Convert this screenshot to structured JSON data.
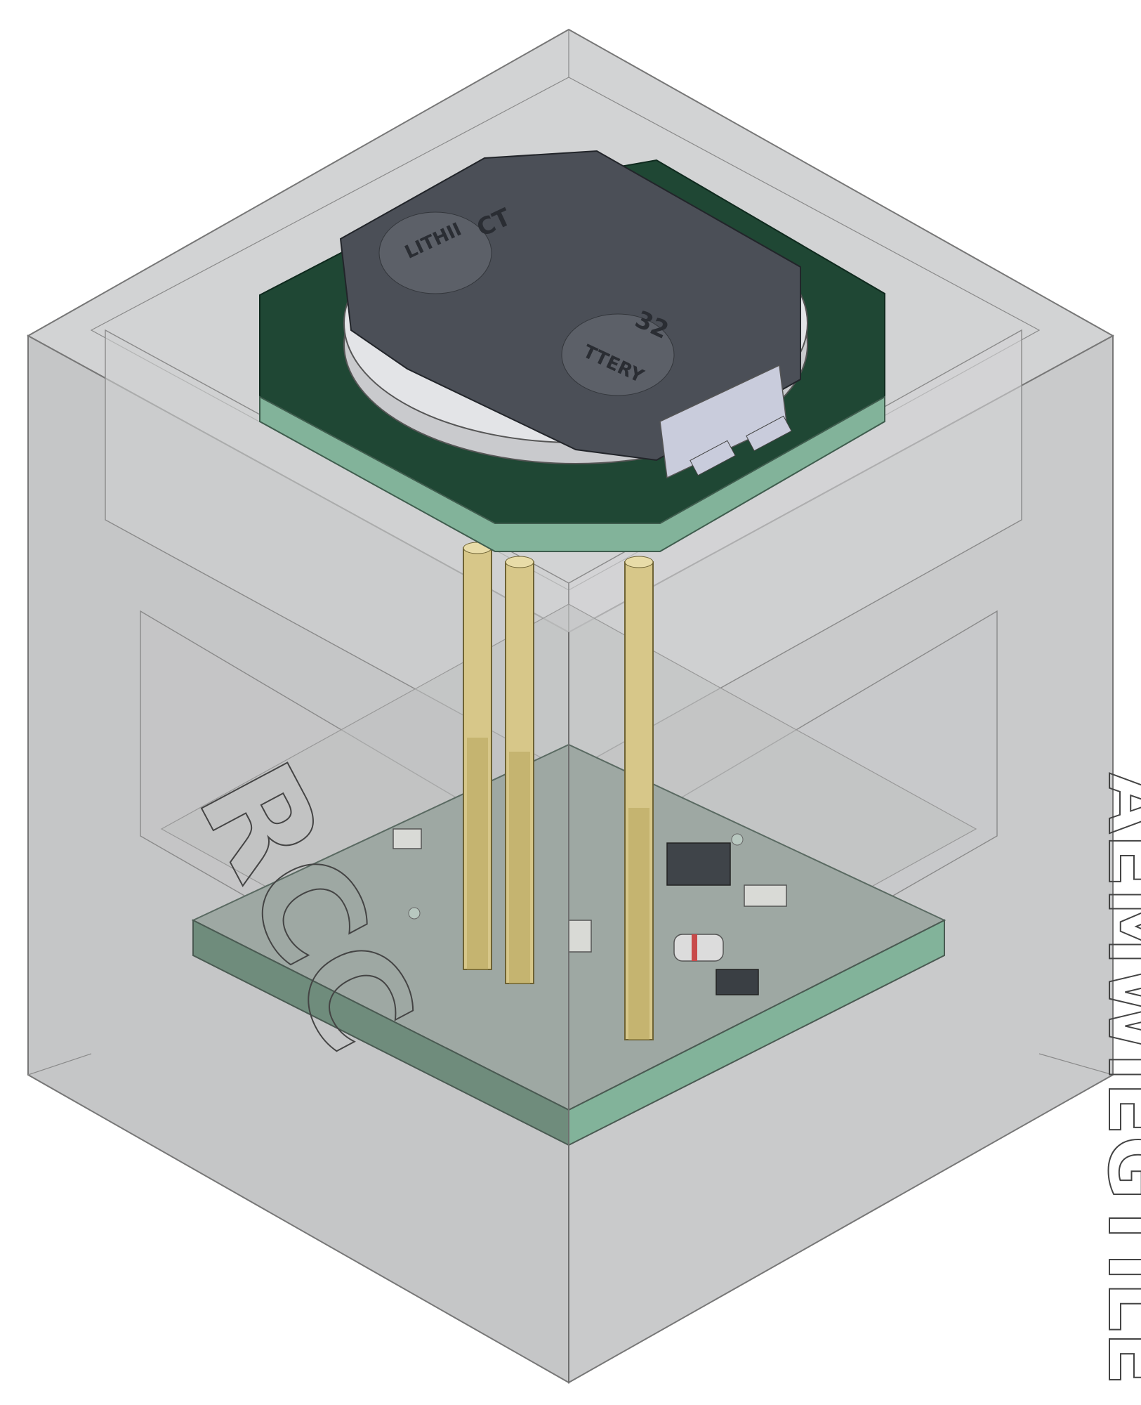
{
  "scene": {
    "battery_holder_text": {
      "left_pad": "LITHII",
      "right_pad": "TTERY",
      "upper_mark": "CT",
      "lower_mark": "32"
    },
    "front_letters": "RCC",
    "side_letters": "AEMWIEGTILE",
    "colors": {
      "enclosure": "#c9cacb",
      "enclosure_dark": "#b4b5b6",
      "pcb_top": "#1f4734",
      "pcb_edge": "#82b39a",
      "holder": "#4b4f57",
      "holder_light": "#6a6e76",
      "battery_metal": "#d5d6da",
      "header_pin": "#d7c789",
      "header_pin_dark": "#b9a65f"
    },
    "icons": {
      "battery": "coin-cell-battery-icon",
      "board": "pcb-icon"
    }
  }
}
